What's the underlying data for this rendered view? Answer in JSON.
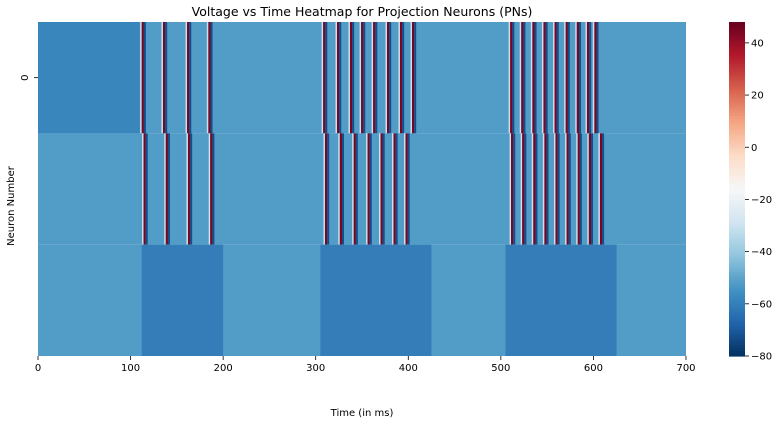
{
  "chart_data": {
    "type": "heatmap",
    "title": "Voltage vs Time Heatmap for Projection Neurons (PNs)",
    "xlabel": "Time (in ms)",
    "ylabel": "Neuron Number",
    "xlim": [
      0,
      700
    ],
    "x_ticks": [
      0,
      100,
      200,
      300,
      400,
      500,
      600,
      700
    ],
    "y_tick_labels": [
      "0"
    ],
    "colorbar": {
      "colormap": "RdBu_r",
      "range": [
        -80,
        48
      ],
      "ticks": [
        40,
        20,
        0,
        -20,
        -40,
        -60,
        -80
      ]
    },
    "rows": [
      {
        "neuron_index": 0,
        "resting_voltage_mv": -52,
        "baseline_before_spikes_mv": -58,
        "spike_times_ms": [
          112,
          135,
          161,
          184,
          308,
          323,
          337,
          349,
          362,
          377,
          391,
          404,
          510,
          522,
          534,
          546,
          558,
          570,
          582,
          593,
          601
        ],
        "spike_peak_mv": 45,
        "afterhyperpolarization_mv": -73
      },
      {
        "neuron_index": 1,
        "resting_voltage_mv": -52,
        "spike_times_ms": [
          114,
          138,
          162,
          186,
          310,
          326,
          341,
          356,
          370,
          384,
          397,
          511,
          523,
          535,
          547,
          559,
          571,
          583,
          595,
          607
        ],
        "spike_peak_mv": 45,
        "afterhyperpolarization_mv": -73
      },
      {
        "neuron_index": 2,
        "resting_voltage_mv": -52,
        "spike_times_ms": [],
        "subthreshold_depolarization_windows_ms": [
          [
            112,
            200
          ],
          [
            305,
            425
          ],
          [
            505,
            625
          ]
        ],
        "subthreshold_min_mv": -64
      }
    ]
  }
}
